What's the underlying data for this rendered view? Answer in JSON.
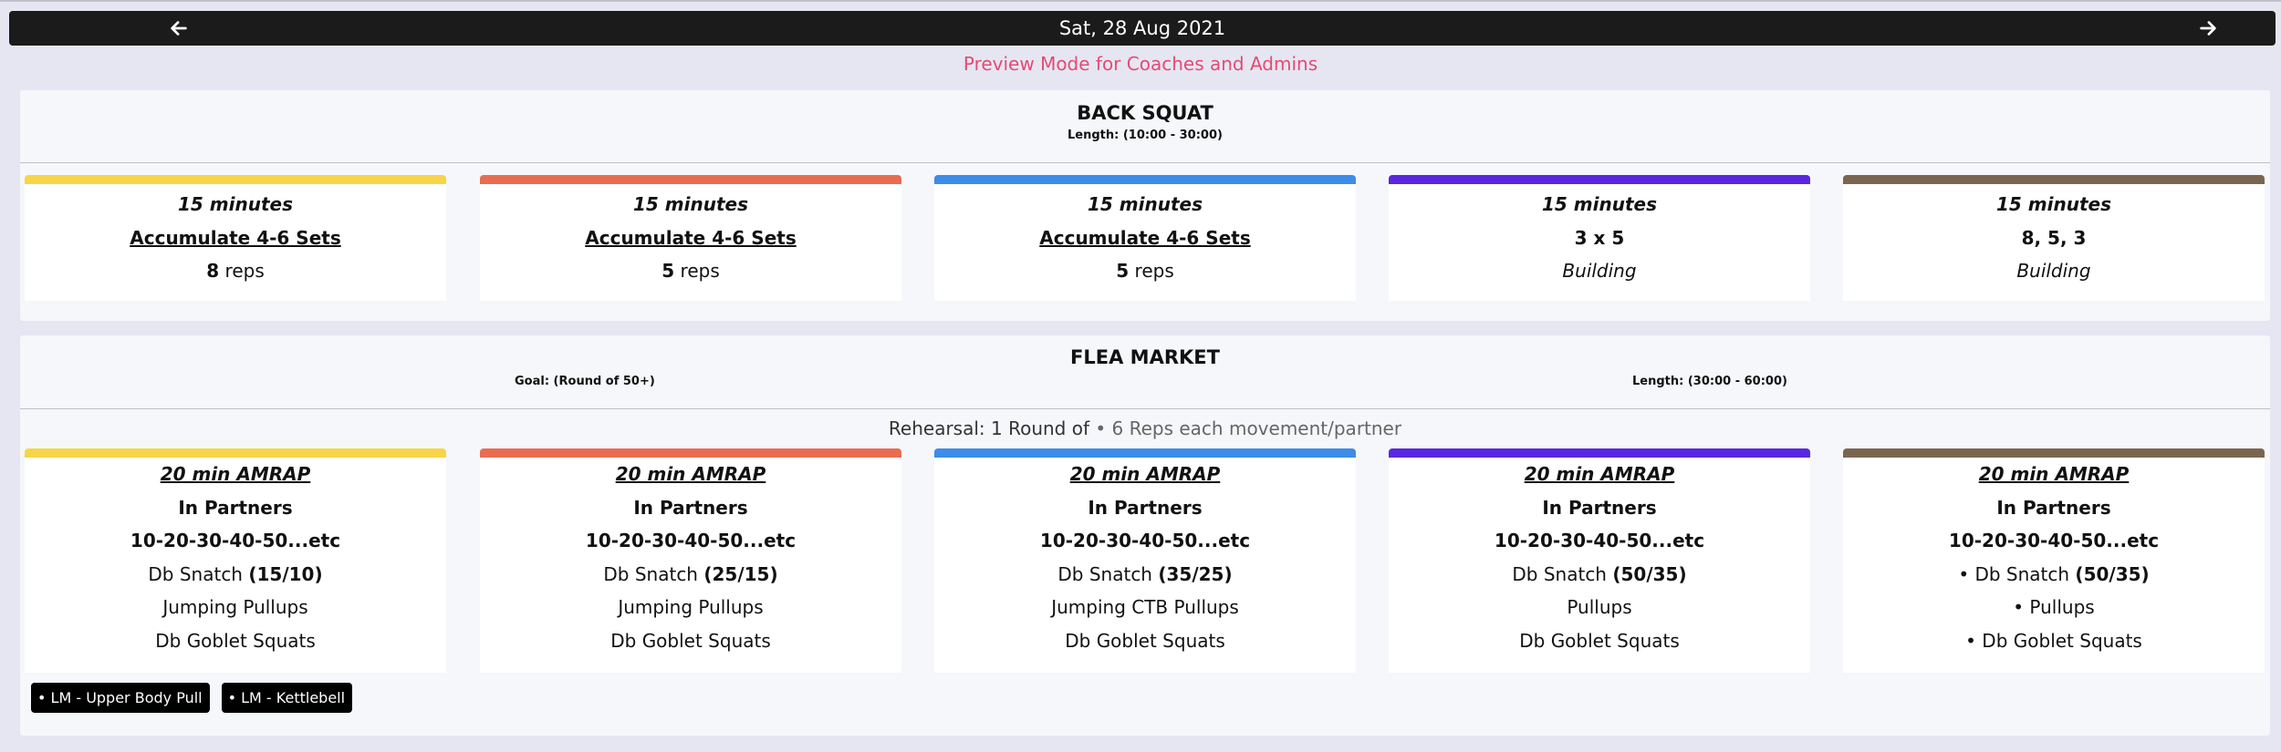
{
  "header": {
    "date": "Sat, 28 Aug 2021",
    "prev_icon": "arrow-left-icon",
    "next_icon": "arrow-right-icon"
  },
  "notice": "Preview Mode for Coaches and Admins",
  "level_colors": [
    "#f8d548",
    "#ea6c50",
    "#3d8ce8",
    "#5a27e0",
    "#7a6650"
  ],
  "sections": [
    {
      "title": "BACK SQUAT",
      "length": "Length: (10:00 - 30:00)",
      "cards": [
        {
          "time": "15 minutes",
          "scheme": "Accumulate 4-6 Sets",
          "reps_num": "8",
          "reps_unit": "reps"
        },
        {
          "time": "15 minutes",
          "scheme": "Accumulate 4-6 Sets",
          "reps_num": "5",
          "reps_unit": "reps"
        },
        {
          "time": "15 minutes",
          "scheme": "Accumulate 4-6 Sets",
          "reps_num": "5",
          "reps_unit": "reps"
        },
        {
          "time": "15 minutes",
          "scheme": "3 x 5",
          "note": "Building"
        },
        {
          "time": "15 minutes",
          "scheme": "8, 5, 3",
          "note": "Building"
        }
      ]
    },
    {
      "title": "FLEA MARKET",
      "goal": "Goal: (Round of 50+)",
      "length": "Length: (30:00 - 60:00)",
      "rehearsal_prefix": "Rehearsal: 1 Round of",
      "rehearsal_rest": "• 6 Reps each movement/partner",
      "cards": [
        {
          "format": "20 min AMRAP",
          "partners": "In Partners",
          "ladder": "10-20-30-40-50...etc",
          "m1": "Db Snatch",
          "m1_load": "(15/10)",
          "m2": "Jumping Pullups",
          "m3": "Db Goblet Squats"
        },
        {
          "format": "20 min AMRAP",
          "partners": "In Partners",
          "ladder": "10-20-30-40-50...etc",
          "m1": "Db Snatch",
          "m1_load": "(25/15)",
          "m2": "Jumping Pullups",
          "m3": "Db Goblet Squats"
        },
        {
          "format": "20 min AMRAP",
          "partners": "In Partners",
          "ladder": "10-20-30-40-50...etc",
          "m1": "Db Snatch",
          "m1_load": "(35/25)",
          "m2": "Jumping CTB Pullups",
          "m3": "Db Goblet Squats"
        },
        {
          "format": "20 min AMRAP",
          "partners": "In Partners",
          "ladder": "10-20-30-40-50...etc",
          "m1": "Db Snatch",
          "m1_load": "(50/35)",
          "m2": "Pullups",
          "m3": "Db Goblet Squats"
        },
        {
          "format": "20 min AMRAP",
          "partners": "In Partners",
          "ladder": "10-20-30-40-50...etc",
          "m1": "• Db Snatch",
          "m1_load": "(50/35)",
          "m2": "• Pullups",
          "m3": "• Db Goblet Squats"
        }
      ],
      "tags": [
        "• LM - Upper Body Pull",
        "• LM - Kettlebell"
      ]
    }
  ]
}
